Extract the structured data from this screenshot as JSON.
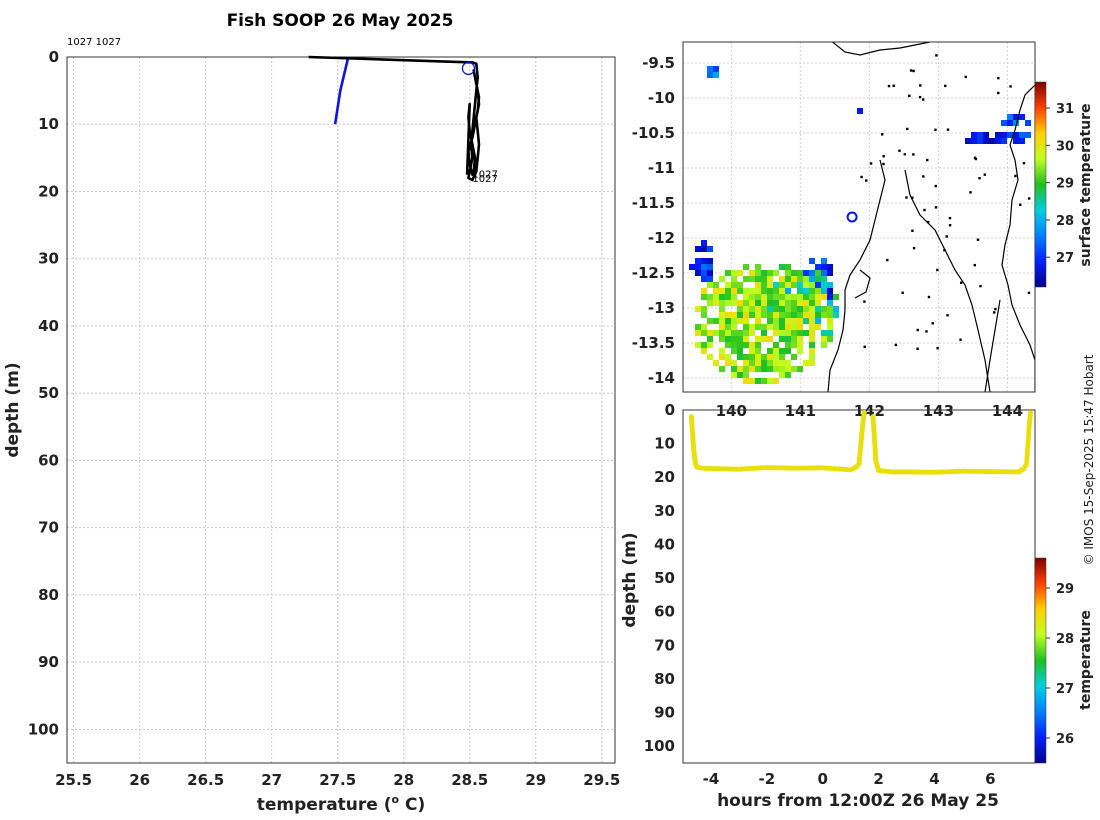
{
  "title": "Fish SOOP 26 May 2025",
  "credit": "© IMOS 15-Sep-2025 15:47 Hobart",
  "chart_data": [
    {
      "name": "temperature-profile",
      "type": "line",
      "xlabel": "temperature (° C)",
      "ylabel": "depth (m)",
      "xlim": [
        25.45,
        29.6
      ],
      "ylim": [
        105,
        0
      ],
      "xticks": [
        25.5,
        26,
        26.5,
        27,
        27.5,
        28,
        28.5,
        29,
        29.5
      ],
      "yticks": [
        0,
        10,
        20,
        30,
        40,
        50,
        60,
        70,
        80,
        90,
        100
      ],
      "grid": true,
      "top_annotation": "1027 1027",
      "series": [
        {
          "name": "blue-profile",
          "color": "#0a14e6",
          "x": [
            27.58,
            27.55,
            27.52,
            27.5,
            27.48
          ],
          "y": [
            0,
            2.5,
            5,
            7.5,
            10
          ]
        },
        {
          "name": "black-profile",
          "color": "#000000",
          "x": [
            27.28,
            28.52,
            28.55,
            28.56,
            28.55,
            28.54,
            28.53,
            28.52,
            28.51,
            28.52,
            28.5,
            28.49,
            28.52,
            28.55,
            28.56,
            28.57,
            28.56,
            28.55,
            28.57,
            28.56,
            28.54,
            28.53,
            28.55,
            28.57,
            28.56,
            28.54,
            28.52,
            28.49,
            28.5,
            28.52,
            28.53,
            28.54,
            28.52,
            28.5,
            28.49,
            28.5,
            28.48
          ],
          "y": [
            0,
            0.8,
            1,
            3,
            5,
            7,
            9,
            11,
            13,
            15,
            17,
            18,
            18.3,
            17,
            15,
            13,
            11,
            9,
            7,
            5,
            3,
            2,
            4,
            6,
            8,
            10,
            12,
            14,
            16,
            17.5,
            17,
            15,
            13,
            11,
            9,
            7,
            17.5
          ]
        }
      ],
      "annotations": [
        {
          "text": "1027",
          "x": 28.52,
          "y": 17.9
        },
        {
          "text": "1027",
          "x": 28.52,
          "y": 18.6
        }
      ],
      "markers": [
        {
          "shape": "circle",
          "x": 28.49,
          "y": 1.7,
          "color": "#0a14e6"
        }
      ]
    },
    {
      "name": "surface-temperature-map",
      "type": "heatmap",
      "xlim": [
        139.3,
        144.4
      ],
      "ylim": [
        -14.2,
        -9.2
      ],
      "xticks": [
        140,
        141,
        142,
        143,
        144
      ],
      "yticks": [
        -9.5,
        -10,
        -10.5,
        -11,
        -11.5,
        -12,
        -12.5,
        -13,
        -13.5,
        -14
      ],
      "colorbar": {
        "label": "surface temperature",
        "min": 26.2,
        "max": 31.7,
        "ticks": [
          27,
          28,
          29,
          30,
          31
        ]
      },
      "location_marker": {
        "x": 141.75,
        "y": -11.7
      }
    },
    {
      "name": "depth-time-track",
      "type": "scatter",
      "xlabel": "hours from 12:00Z 26 May 25",
      "ylabel": "depth (m)",
      "xlim": [
        -5,
        7.6
      ],
      "ylim": [
        105,
        0
      ],
      "xticks": [
        -4,
        -2,
        0,
        2,
        4,
        6
      ],
      "yticks": [
        0,
        10,
        20,
        30,
        40,
        50,
        60,
        70,
        80,
        90,
        100
      ],
      "colorbar": {
        "label": "temperature",
        "min": 25.5,
        "max": 29.6,
        "ticks": [
          26,
          27,
          28,
          29
        ]
      },
      "segments": [
        {
          "x": [
            -4.7,
            -4.65,
            -4.6,
            -4.55,
            -4.5,
            -4.3,
            -4,
            -3,
            -2,
            -1,
            0,
            1,
            1.2,
            1.3,
            1.35,
            1.4,
            1.45,
            1.5
          ],
          "y": [
            2,
            8,
            13,
            16,
            17,
            17.3,
            17.4,
            17.6,
            17.1,
            17.3,
            17.2,
            17.8,
            17,
            16,
            12,
            7,
            3,
            0
          ],
          "temp": 28.4
        },
        {
          "x": [
            1.8,
            1.85,
            1.9,
            2,
            2.5,
            3,
            4,
            5,
            6,
            7,
            7.2,
            7.3,
            7.35,
            7.4,
            7.45
          ],
          "y": [
            2,
            8,
            15,
            18,
            18.4,
            18.4,
            18.5,
            18.2,
            18.3,
            18.4,
            17.5,
            16,
            10,
            4,
            0
          ],
          "temp": 28.4
        }
      ]
    }
  ]
}
